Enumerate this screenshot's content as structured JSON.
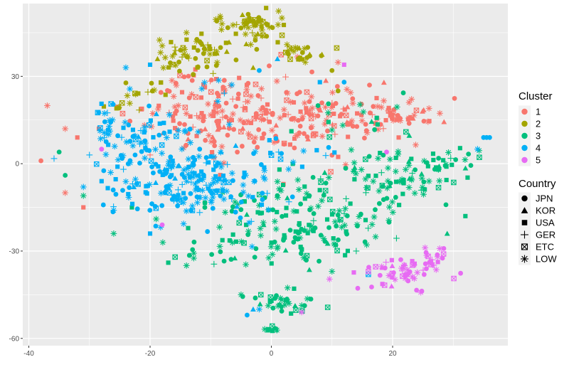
{
  "chart_data": {
    "type": "scatter",
    "title": "",
    "xlabel": "",
    "ylabel": "",
    "xlim": [
      -41,
      39
    ],
    "ylim": [
      -62.5,
      55
    ],
    "x_ticks": [
      -40,
      -20,
      0,
      20
    ],
    "y_ticks": [
      30,
      0,
      -30,
      -60
    ],
    "x_tick_labels": [
      "-40",
      "-20",
      "0",
      "20"
    ],
    "y_tick_labels": [
      "30",
      "0",
      "-30",
      "-60"
    ],
    "grid": true,
    "panel_background": "#ebebeb",
    "grid_color": "#ffffff",
    "legends": {
      "cluster": {
        "title": "Cluster",
        "entries": [
          {
            "label": "1",
            "color": "#f8766d"
          },
          {
            "label": "2",
            "color": "#a3a500"
          },
          {
            "label": "3",
            "color": "#00bf7d"
          },
          {
            "label": "4",
            "color": "#00b0f6"
          },
          {
            "label": "5",
            "color": "#e76bf3"
          }
        ]
      },
      "country": {
        "title": "Country",
        "entries": [
          {
            "label": "JPN",
            "shape": "circle"
          },
          {
            "label": "KOR",
            "shape": "triangle"
          },
          {
            "label": "USA",
            "shape": "square"
          },
          {
            "label": "GER",
            "shape": "plus"
          },
          {
            "label": "ETC",
            "shape": "boxcross"
          },
          {
            "label": "LOW",
            "shape": "asterisk"
          }
        ]
      }
    },
    "clusters": [
      {
        "name": "1",
        "color": "#f8766d",
        "regions": [
          {
            "cx": -2,
            "cy": 17,
            "sx": 10,
            "sy": 7,
            "n": 260
          },
          {
            "cx": 18,
            "cy": 16,
            "sx": 4,
            "sy": 3,
            "n": 45
          },
          {
            "cx": 24,
            "cy": 16,
            "sx": 2,
            "sy": 2,
            "n": 12
          },
          {
            "cx": -12,
            "cy": 28,
            "sx": 4,
            "sy": 2,
            "n": 15
          }
        ],
        "points": [
          [
            -38,
            1,
            0
          ],
          [
            -34,
            12,
            5
          ],
          [
            -32,
            9,
            2
          ],
          [
            -31,
            -15,
            2
          ],
          [
            -34,
            -10,
            5
          ],
          [
            -20,
            3,
            3
          ],
          [
            26,
            19,
            5
          ],
          [
            2,
            -7,
            2
          ],
          [
            21,
            9,
            2
          ],
          [
            -5,
            11,
            4
          ]
        ]
      },
      {
        "name": "2",
        "color": "#a3a500",
        "regions": [
          {
            "cx": -3,
            "cy": 48,
            "sx": 3,
            "sy": 3,
            "n": 55
          },
          {
            "cx": -13,
            "cy": 38,
            "sx": 3.5,
            "sy": 3,
            "n": 60
          },
          {
            "cx": 5,
            "cy": 38,
            "sx": 2,
            "sy": 1.7,
            "n": 25
          },
          {
            "cx": -20,
            "cy": 25,
            "sx": 2,
            "sy": 1.5,
            "n": 12
          },
          {
            "cx": -25,
            "cy": 20,
            "sx": 1.5,
            "sy": 1,
            "n": 7
          }
        ],
        "points": [
          [
            -9,
            49,
            0
          ],
          [
            -14,
            45,
            5
          ],
          [
            10,
            32,
            0
          ],
          [
            11,
            25,
            0
          ],
          [
            -3,
            33,
            1
          ]
        ]
      },
      {
        "name": "3",
        "color": "#00bf7d",
        "regions": [
          {
            "cx": 5,
            "cy": -20,
            "sx": 7,
            "sy": 8,
            "n": 170
          },
          {
            "cx": 20,
            "cy": -6,
            "sx": 6,
            "sy": 6,
            "n": 85
          },
          {
            "cx": 28,
            "cy": 0,
            "sx": 3,
            "sy": 3,
            "n": 20
          },
          {
            "cx": 2,
            "cy": -48,
            "sx": 2.5,
            "sy": 2,
            "n": 35
          },
          {
            "cx": 0,
            "cy": -57,
            "sx": 0.8,
            "sy": 0.5,
            "n": 8
          },
          {
            "cx": 13,
            "cy": 15,
            "sx": 3,
            "sy": 5,
            "n": 15
          },
          {
            "cx": -10,
            "cy": -30,
            "sx": 4,
            "sy": 3,
            "n": 15
          }
        ],
        "points": [
          [
            -35,
            4,
            0
          ],
          [
            -34,
            -4,
            0
          ],
          [
            -31,
            -11,
            5
          ],
          [
            -26,
            -24,
            5
          ],
          [
            -23,
            -15,
            2
          ],
          [
            -19,
            -19,
            5
          ],
          [
            -17,
            -34,
            2
          ],
          [
            -14,
            -35,
            5
          ],
          [
            -5,
            -45,
            5
          ],
          [
            29,
            -24,
            1
          ],
          [
            32,
            -18,
            2
          ],
          [
            26,
            -6,
            5
          ],
          [
            14,
            -30,
            3
          ],
          [
            10,
            -37,
            5
          ]
        ]
      },
      {
        "name": "4",
        "color": "#00b0f6",
        "regions": [
          {
            "cx": -14,
            "cy": -7,
            "sx": 6,
            "sy": 6,
            "n": 170
          },
          {
            "cx": -22,
            "cy": 10,
            "sx": 4,
            "sy": 5,
            "n": 70
          },
          {
            "cx": -6,
            "cy": -4,
            "sx": 5,
            "sy": 8,
            "n": 45
          },
          {
            "cx": -27,
            "cy": 14,
            "sx": 1.5,
            "sy": 4,
            "n": 15
          },
          {
            "cx": 3,
            "cy": 5,
            "sx": 3,
            "sy": 3,
            "n": 12
          },
          {
            "cx": -9,
            "cy": 26,
            "sx": 2,
            "sy": 2,
            "n": 6
          }
        ],
        "points": [
          [
            35,
            9,
            0
          ],
          [
            35.5,
            9,
            0
          ],
          [
            36,
            9,
            0
          ],
          [
            34,
            5,
            5
          ],
          [
            -24,
            33,
            5
          ],
          [
            -20,
            34,
            2
          ],
          [
            -30,
            3,
            3
          ],
          [
            -28,
            -6,
            2
          ],
          [
            -31,
            -8,
            5
          ],
          [
            -26,
            -16,
            5
          ],
          [
            -20,
            -24,
            2
          ],
          [
            -4,
            -52,
            0
          ],
          [
            -2,
            -50,
            5
          ],
          [
            -3,
            -50,
            1
          ],
          [
            1,
            36,
            1
          ],
          [
            8,
            28,
            2
          ],
          [
            12,
            28,
            0
          ],
          [
            16,
            -38,
            4
          ],
          [
            -2,
            32,
            0
          ]
        ]
      },
      {
        "name": "5",
        "color": "#e76bf3",
        "regions": [
          {
            "cx": 22,
            "cy": -37,
            "sx": 3,
            "sy": 3,
            "n": 55
          },
          {
            "cx": 26,
            "cy": -33,
            "sx": 2,
            "sy": 2,
            "n": 15
          }
        ],
        "points": [
          [
            12,
            34,
            2
          ],
          [
            -18,
            -21,
            0
          ],
          [
            5,
            -51,
            5
          ],
          [
            -28,
            5,
            0
          ],
          [
            16,
            -37,
            4
          ],
          [
            19,
            4,
            0
          ]
        ]
      }
    ]
  }
}
